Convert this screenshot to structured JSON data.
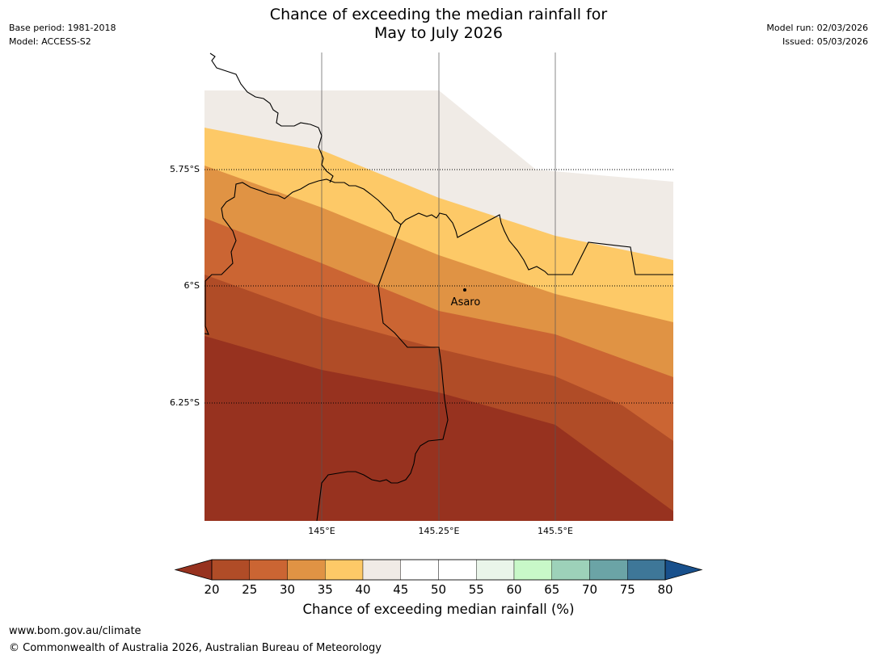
{
  "title": {
    "line1": "Chance of exceeding the median rainfall for",
    "line2": "May to July 2026"
  },
  "meta": {
    "base_period": "Base period: 1981-2018",
    "model": "Model: ACCESS-S2",
    "model_run": "Model run: 02/03/2026",
    "issued": "Issued: 05/03/2026"
  },
  "map": {
    "lat_ticks": [
      "5.75°S",
      "6°S",
      "6.25°S"
    ],
    "lon_ticks": [
      "145°E",
      "145.25°E",
      "145.5°E"
    ],
    "place_label": "Asaro",
    "band_colors": [
      "#f0ebe6",
      "#fdc967",
      "#e09344",
      "#cb6533",
      "#b04c27",
      "#97321f"
    ]
  },
  "colorbar": {
    "title": "Chance of exceeding median rainfall (%)",
    "tick_labels": [
      "20",
      "25",
      "30",
      "35",
      "40",
      "45",
      "50",
      "55",
      "60",
      "65",
      "70",
      "75",
      "80"
    ],
    "colors": [
      "#b04c27",
      "#cb6533",
      "#e09344",
      "#fdc967",
      "#f0ebe6",
      "#ffffff",
      "#ffffff",
      "#eaf5ea",
      "#c8f8c8",
      "#9dd1b9",
      "#6ba4a6",
      "#3e7798"
    ],
    "under_color": "#97321f",
    "over_color": "#18508c"
  },
  "footer": {
    "url": "www.bom.gov.au/climate",
    "copyright": "© Commonwealth of Australia 2026, Australian Bureau of Meteorology"
  }
}
